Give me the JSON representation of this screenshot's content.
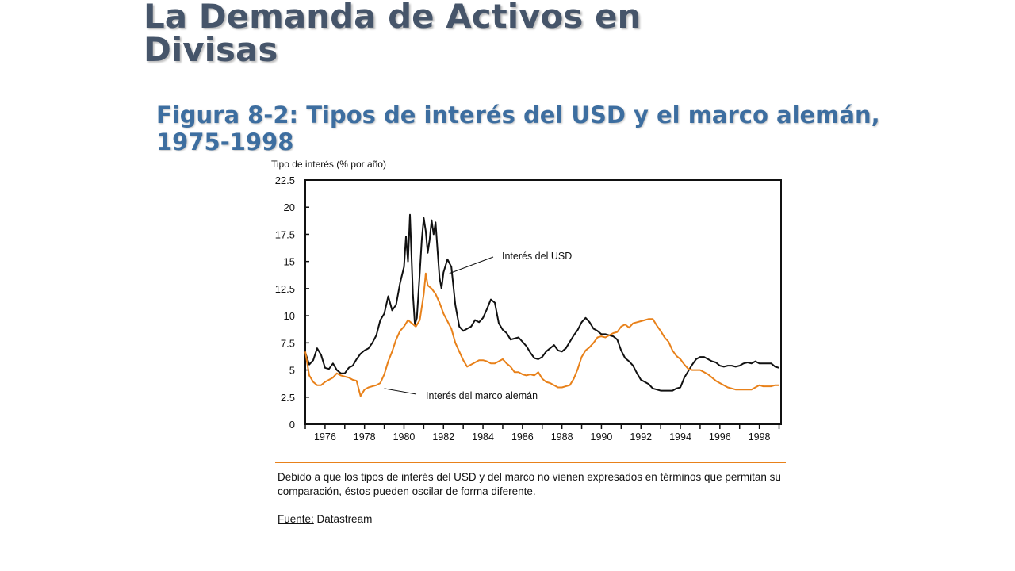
{
  "slide": {
    "title": "La Demanda de Activos en Divisas",
    "figure_caption": "Figura 8-2: Tipos de interés del USD y el marco alemán, 1975-1998",
    "note": "Debido a que los tipos de interés del USD y del marco no vienen expresados en términos que permitan su comparación, éstos pueden oscilar de forma diferente.",
    "source_label": "Fuente:",
    "source_value": "Datastream"
  },
  "colors": {
    "usd": "#111111",
    "dm": "#e8811a",
    "title": "#46556a",
    "caption": "#3d6ea0"
  },
  "chart_data": {
    "type": "line",
    "title": "",
    "xlabel": "",
    "ylabel": "Tipo de interés (% por año)",
    "xlim": [
      1975,
      1999.1
    ],
    "ylim": [
      0,
      22.5
    ],
    "grid": false,
    "y_ticks": [
      "0",
      "2.5",
      "5",
      "7.5",
      "10",
      "12.5",
      "15",
      "17.5",
      "20",
      "22.5"
    ],
    "x_ticks": [
      "1976",
      "1978",
      "1980",
      "1982",
      "1984",
      "1986",
      "1988",
      "1990",
      "1992",
      "1994",
      "1996",
      "1998"
    ],
    "series": [
      {
        "name": "Interés del USD",
        "color": "#111111",
        "points": [
          [
            1975.0,
            6.6
          ],
          [
            1975.2,
            5.5
          ],
          [
            1975.4,
            5.9
          ],
          [
            1975.6,
            7.0
          ],
          [
            1975.8,
            6.4
          ],
          [
            1976.0,
            5.2
          ],
          [
            1976.2,
            5.1
          ],
          [
            1976.4,
            5.6
          ],
          [
            1976.6,
            5.0
          ],
          [
            1976.8,
            4.7
          ],
          [
            1977.0,
            4.7
          ],
          [
            1977.2,
            5.2
          ],
          [
            1977.4,
            5.4
          ],
          [
            1977.6,
            6.0
          ],
          [
            1977.8,
            6.5
          ],
          [
            1978.0,
            6.8
          ],
          [
            1978.2,
            7.0
          ],
          [
            1978.4,
            7.5
          ],
          [
            1978.6,
            8.2
          ],
          [
            1978.8,
            9.6
          ],
          [
            1979.0,
            10.2
          ],
          [
            1979.2,
            11.8
          ],
          [
            1979.4,
            10.5
          ],
          [
            1979.6,
            11.0
          ],
          [
            1979.8,
            13.0
          ],
          [
            1980.0,
            14.5
          ],
          [
            1980.1,
            17.3
          ],
          [
            1980.2,
            15.0
          ],
          [
            1980.3,
            19.3
          ],
          [
            1980.45,
            12.0
          ],
          [
            1980.55,
            9.2
          ],
          [
            1980.65,
            9.8
          ],
          [
            1980.8,
            14.0
          ],
          [
            1980.9,
            17.0
          ],
          [
            1981.0,
            19.0
          ],
          [
            1981.1,
            17.8
          ],
          [
            1981.2,
            15.8
          ],
          [
            1981.3,
            17.0
          ],
          [
            1981.4,
            18.8
          ],
          [
            1981.5,
            17.5
          ],
          [
            1981.6,
            18.6
          ],
          [
            1981.7,
            16.0
          ],
          [
            1981.8,
            13.5
          ],
          [
            1981.9,
            12.5
          ],
          [
            1982.0,
            14.0
          ],
          [
            1982.2,
            15.2
          ],
          [
            1982.4,
            14.5
          ],
          [
            1982.6,
            11.0
          ],
          [
            1982.8,
            9.0
          ],
          [
            1983.0,
            8.6
          ],
          [
            1983.2,
            8.8
          ],
          [
            1983.4,
            9.0
          ],
          [
            1983.6,
            9.6
          ],
          [
            1983.8,
            9.4
          ],
          [
            1984.0,
            9.8
          ],
          [
            1984.2,
            10.6
          ],
          [
            1984.4,
            11.5
          ],
          [
            1984.6,
            11.2
          ],
          [
            1984.8,
            9.3
          ],
          [
            1985.0,
            8.7
          ],
          [
            1985.2,
            8.4
          ],
          [
            1985.4,
            7.8
          ],
          [
            1985.6,
            7.9
          ],
          [
            1985.8,
            8.0
          ],
          [
            1986.0,
            7.6
          ],
          [
            1986.2,
            7.2
          ],
          [
            1986.4,
            6.6
          ],
          [
            1986.6,
            6.1
          ],
          [
            1986.8,
            6.0
          ],
          [
            1987.0,
            6.2
          ],
          [
            1987.2,
            6.7
          ],
          [
            1987.4,
            7.0
          ],
          [
            1987.6,
            7.3
          ],
          [
            1987.8,
            6.8
          ],
          [
            1988.0,
            6.7
          ],
          [
            1988.2,
            7.0
          ],
          [
            1988.4,
            7.6
          ],
          [
            1988.6,
            8.2
          ],
          [
            1988.8,
            8.7
          ],
          [
            1989.0,
            9.4
          ],
          [
            1989.2,
            9.8
          ],
          [
            1989.4,
            9.4
          ],
          [
            1989.6,
            8.8
          ],
          [
            1989.8,
            8.6
          ],
          [
            1990.0,
            8.3
          ],
          [
            1990.2,
            8.3
          ],
          [
            1990.4,
            8.2
          ],
          [
            1990.6,
            8.1
          ],
          [
            1990.8,
            7.8
          ],
          [
            1991.0,
            6.8
          ],
          [
            1991.2,
            6.1
          ],
          [
            1991.4,
            5.8
          ],
          [
            1991.6,
            5.4
          ],
          [
            1991.8,
            4.7
          ],
          [
            1992.0,
            4.1
          ],
          [
            1992.2,
            3.9
          ],
          [
            1992.4,
            3.7
          ],
          [
            1992.6,
            3.3
          ],
          [
            1992.8,
            3.2
          ],
          [
            1993.0,
            3.1
          ],
          [
            1993.2,
            3.1
          ],
          [
            1993.4,
            3.1
          ],
          [
            1993.6,
            3.1
          ],
          [
            1993.8,
            3.3
          ],
          [
            1994.0,
            3.4
          ],
          [
            1994.2,
            4.3
          ],
          [
            1994.4,
            4.9
          ],
          [
            1994.6,
            5.5
          ],
          [
            1994.8,
            6.0
          ],
          [
            1995.0,
            6.2
          ],
          [
            1995.2,
            6.2
          ],
          [
            1995.4,
            6.0
          ],
          [
            1995.6,
            5.8
          ],
          [
            1995.8,
            5.7
          ],
          [
            1996.0,
            5.4
          ],
          [
            1996.2,
            5.3
          ],
          [
            1996.4,
            5.4
          ],
          [
            1996.6,
            5.4
          ],
          [
            1996.8,
            5.3
          ],
          [
            1997.0,
            5.4
          ],
          [
            1997.2,
            5.6
          ],
          [
            1997.4,
            5.7
          ],
          [
            1997.6,
            5.6
          ],
          [
            1997.8,
            5.8
          ],
          [
            1998.0,
            5.6
          ],
          [
            1998.2,
            5.6
          ],
          [
            1998.4,
            5.6
          ],
          [
            1998.6,
            5.6
          ],
          [
            1998.8,
            5.3
          ],
          [
            1999.0,
            5.2
          ]
        ]
      },
      {
        "name": "Interés del marco alemán",
        "color": "#e8811a",
        "points": [
          [
            1975.0,
            6.7
          ],
          [
            1975.2,
            4.5
          ],
          [
            1975.4,
            3.9
          ],
          [
            1975.6,
            3.6
          ],
          [
            1975.8,
            3.6
          ],
          [
            1976.0,
            3.9
          ],
          [
            1976.2,
            4.1
          ],
          [
            1976.4,
            4.3
          ],
          [
            1976.6,
            4.7
          ],
          [
            1976.8,
            4.5
          ],
          [
            1977.0,
            4.4
          ],
          [
            1977.2,
            4.3
          ],
          [
            1977.4,
            4.1
          ],
          [
            1977.6,
            4.0
          ],
          [
            1977.8,
            2.6
          ],
          [
            1978.0,
            3.2
          ],
          [
            1978.2,
            3.4
          ],
          [
            1978.4,
            3.5
          ],
          [
            1978.6,
            3.6
          ],
          [
            1978.8,
            3.8
          ],
          [
            1979.0,
            4.6
          ],
          [
            1979.2,
            5.8
          ],
          [
            1979.4,
            6.7
          ],
          [
            1979.6,
            7.8
          ],
          [
            1979.8,
            8.6
          ],
          [
            1980.0,
            9.0
          ],
          [
            1980.2,
            9.6
          ],
          [
            1980.4,
            9.3
          ],
          [
            1980.6,
            9.0
          ],
          [
            1980.8,
            9.6
          ],
          [
            1981.0,
            12.0
          ],
          [
            1981.1,
            13.9
          ],
          [
            1981.2,
            12.8
          ],
          [
            1981.4,
            12.5
          ],
          [
            1981.6,
            12.0
          ],
          [
            1981.8,
            11.2
          ],
          [
            1982.0,
            10.2
          ],
          [
            1982.2,
            9.5
          ],
          [
            1982.4,
            8.8
          ],
          [
            1982.6,
            7.5
          ],
          [
            1982.8,
            6.7
          ],
          [
            1983.0,
            5.9
          ],
          [
            1983.2,
            5.3
          ],
          [
            1983.4,
            5.5
          ],
          [
            1983.6,
            5.7
          ],
          [
            1983.8,
            5.9
          ],
          [
            1984.0,
            5.9
          ],
          [
            1984.2,
            5.8
          ],
          [
            1984.4,
            5.6
          ],
          [
            1984.6,
            5.6
          ],
          [
            1984.8,
            5.8
          ],
          [
            1985.0,
            6.0
          ],
          [
            1985.2,
            5.6
          ],
          [
            1985.4,
            5.3
          ],
          [
            1985.6,
            4.8
          ],
          [
            1985.8,
            4.8
          ],
          [
            1986.0,
            4.6
          ],
          [
            1986.2,
            4.5
          ],
          [
            1986.4,
            4.6
          ],
          [
            1986.6,
            4.5
          ],
          [
            1986.8,
            4.8
          ],
          [
            1987.0,
            4.2
          ],
          [
            1987.2,
            3.9
          ],
          [
            1987.4,
            3.8
          ],
          [
            1987.6,
            3.6
          ],
          [
            1987.8,
            3.4
          ],
          [
            1988.0,
            3.4
          ],
          [
            1988.2,
            3.5
          ],
          [
            1988.4,
            3.6
          ],
          [
            1988.6,
            4.2
          ],
          [
            1988.8,
            5.1
          ],
          [
            1989.0,
            6.2
          ],
          [
            1989.2,
            6.8
          ],
          [
            1989.4,
            7.1
          ],
          [
            1989.6,
            7.5
          ],
          [
            1989.8,
            8.0
          ],
          [
            1990.0,
            8.1
          ],
          [
            1990.2,
            8.0
          ],
          [
            1990.4,
            8.2
          ],
          [
            1990.6,
            8.4
          ],
          [
            1990.8,
            8.5
          ],
          [
            1991.0,
            9.0
          ],
          [
            1991.2,
            9.2
          ],
          [
            1991.4,
            8.9
          ],
          [
            1991.6,
            9.3
          ],
          [
            1991.8,
            9.4
          ],
          [
            1992.0,
            9.5
          ],
          [
            1992.2,
            9.6
          ],
          [
            1992.4,
            9.7
          ],
          [
            1992.6,
            9.7
          ],
          [
            1992.8,
            9.1
          ],
          [
            1993.0,
            8.6
          ],
          [
            1993.2,
            8.0
          ],
          [
            1993.4,
            7.6
          ],
          [
            1993.6,
            6.8
          ],
          [
            1993.8,
            6.3
          ],
          [
            1994.0,
            6.0
          ],
          [
            1994.2,
            5.5
          ],
          [
            1994.4,
            5.1
          ],
          [
            1994.6,
            5.0
          ],
          [
            1994.8,
            5.0
          ],
          [
            1995.0,
            5.0
          ],
          [
            1995.2,
            4.8
          ],
          [
            1995.4,
            4.6
          ],
          [
            1995.6,
            4.3
          ],
          [
            1995.8,
            4.0
          ],
          [
            1996.0,
            3.8
          ],
          [
            1996.2,
            3.6
          ],
          [
            1996.4,
            3.4
          ],
          [
            1996.6,
            3.3
          ],
          [
            1996.8,
            3.2
          ],
          [
            1997.0,
            3.2
          ],
          [
            1997.2,
            3.2
          ],
          [
            1997.4,
            3.2
          ],
          [
            1997.6,
            3.2
          ],
          [
            1997.8,
            3.4
          ],
          [
            1998.0,
            3.6
          ],
          [
            1998.2,
            3.5
          ],
          [
            1998.4,
            3.5
          ],
          [
            1998.6,
            3.5
          ],
          [
            1998.8,
            3.6
          ],
          [
            1999.0,
            3.6
          ]
        ]
      }
    ],
    "annotations": [
      {
        "text": "Interés del USD",
        "series": "usd",
        "x": 1982.3,
        "y": 13.9
      },
      {
        "text": "Interés del marco alemán",
        "series": "dm",
        "x": 1979.0,
        "y": 3.3
      }
    ]
  }
}
